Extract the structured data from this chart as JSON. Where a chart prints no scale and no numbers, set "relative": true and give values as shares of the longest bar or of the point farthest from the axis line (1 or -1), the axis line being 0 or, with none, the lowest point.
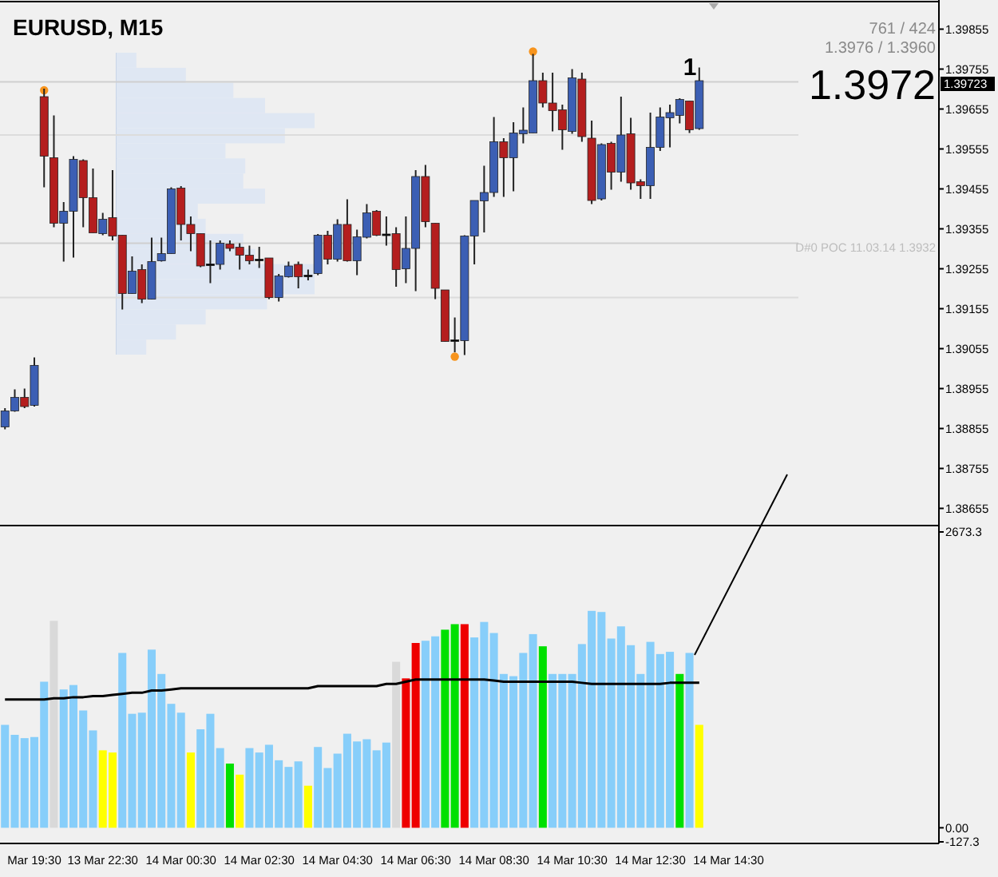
{
  "chart_data": [
    {
      "type": "candlestick",
      "title": "EURUSD, M15",
      "tick_labels": "y",
      "categories": [
        null,
        null,
        null,
        null,
        null,
        null,
        null,
        null,
        null,
        null,
        null,
        null,
        null,
        null,
        null,
        null,
        null,
        null,
        null,
        null,
        null,
        null,
        null,
        null,
        null,
        null,
        null,
        null,
        null,
        null,
        null,
        null,
        null,
        null,
        null,
        null,
        null,
        null,
        null,
        null,
        null,
        null,
        null,
        null,
        null,
        null,
        null,
        null,
        null,
        null,
        null,
        null,
        null,
        null,
        null,
        null,
        null,
        null,
        null,
        null,
        null,
        null,
        null,
        null,
        null,
        null,
        null,
        null,
        null,
        null,
        null,
        null,
        null,
        null,
        null,
        null,
        null,
        null,
        null,
        null,
        null,
        null,
        null,
        null,
        null,
        null,
        null,
        null,
        null,
        null,
        null,
        null,
        null,
        null,
        null,
        null
      ],
      "ohlc": [
        [
          1.38859,
          1.38906,
          1.38853,
          1.38899
        ],
        [
          1.38899,
          1.38953,
          1.38897,
          1.38933
        ],
        [
          1.38933,
          1.38955,
          1.38906,
          1.3891
        ],
        [
          1.38913,
          1.39033,
          1.3891,
          1.39013
        ],
        [
          1.39686,
          1.39706,
          1.39459,
          1.39537
        ],
        [
          1.39533,
          1.39639,
          1.39359,
          1.39369
        ],
        [
          1.39369,
          1.39422,
          1.39273,
          1.39399
        ],
        [
          1.39399,
          1.39537,
          1.39283,
          1.39529
        ],
        [
          1.39526,
          1.39529,
          1.39359,
          1.39433
        ],
        [
          1.39433,
          1.39506,
          1.39345,
          1.39345
        ],
        [
          1.39343,
          1.39395,
          1.39339,
          1.39379
        ],
        [
          1.39383,
          1.39502,
          1.39326,
          1.39337
        ],
        [
          1.39339,
          1.39339,
          1.39153,
          1.39193
        ],
        [
          1.39193,
          1.39286,
          1.39193,
          1.39249
        ],
        [
          1.39253,
          1.39266,
          1.39169,
          1.39179
        ],
        [
          1.39179,
          1.39333,
          1.39179,
          1.39273
        ],
        [
          1.39275,
          1.39333,
          1.39273,
          1.39293
        ],
        [
          1.39293,
          1.39459,
          1.39293,
          1.39455
        ],
        [
          1.39457,
          1.39462,
          1.39326,
          1.39366
        ],
        [
          1.39366,
          1.39386,
          1.39299,
          1.39343
        ],
        [
          1.39343,
          1.39343,
          1.39259,
          1.39262
        ],
        [
          1.39267,
          1.39326,
          1.39219,
          1.39267
        ],
        [
          1.39266,
          1.39326,
          1.39253,
          1.39319
        ],
        [
          1.39317,
          1.39326,
          1.39299,
          1.39306
        ],
        [
          1.39309,
          1.39319,
          1.39253,
          1.39289
        ],
        [
          1.39289,
          1.39313,
          1.39266,
          1.39275
        ],
        [
          1.39279,
          1.3931,
          1.39257,
          1.39279
        ],
        [
          1.39282,
          1.39282,
          1.39179,
          1.39183
        ],
        [
          1.39183,
          1.39242,
          1.39173,
          1.39237
        ],
        [
          1.39235,
          1.39273,
          1.39233,
          1.39262
        ],
        [
          1.39266,
          1.39273,
          1.39206,
          1.39235
        ],
        [
          1.39239,
          1.39253,
          1.39226,
          1.39239
        ],
        [
          1.39243,
          1.39342,
          1.39239,
          1.39339
        ],
        [
          1.39339,
          1.3935,
          1.39266,
          1.39279
        ],
        [
          1.39279,
          1.39379,
          1.39273,
          1.39366
        ],
        [
          1.39366,
          1.39429,
          1.39273,
          1.39275
        ],
        [
          1.39275,
          1.39353,
          1.39239,
          1.39335
        ],
        [
          1.39334,
          1.39417,
          1.39331,
          1.39395
        ],
        [
          1.39399,
          1.39402,
          1.39337,
          1.39339
        ],
        [
          1.39342,
          1.39386,
          1.39313,
          1.39342
        ],
        [
          1.39343,
          1.39359,
          1.3921,
          1.39253
        ],
        [
          1.39255,
          1.39386,
          1.39219,
          1.39306
        ],
        [
          1.39306,
          1.39502,
          1.39199,
          1.39486
        ],
        [
          1.39486,
          1.39515,
          1.39359,
          1.39373
        ],
        [
          1.39369,
          1.39369,
          1.39179,
          1.39206
        ],
        [
          1.39202,
          1.39202,
          1.39073,
          1.39073
        ],
        [
          1.39077,
          1.39133,
          1.39046,
          1.39077
        ],
        [
          1.39075,
          1.39339,
          1.39039,
          1.39337
        ],
        [
          1.39337,
          1.39426,
          1.39266,
          1.39426
        ],
        [
          1.39425,
          1.39513,
          1.39346,
          1.39446
        ],
        [
          1.39446,
          1.39635,
          1.39435,
          1.39573
        ],
        [
          1.39573,
          1.39582,
          1.39435,
          1.39533
        ],
        [
          1.39533,
          1.39622,
          1.39449,
          1.39595
        ],
        [
          1.39593,
          1.39659,
          1.39569,
          1.39602
        ],
        [
          1.39595,
          1.39793,
          1.39595,
          1.39726
        ],
        [
          1.39726,
          1.39746,
          1.39659,
          1.3967
        ],
        [
          1.3967,
          1.39746,
          1.39599,
          1.39651
        ],
        [
          1.39653,
          1.39666,
          1.39553,
          1.39603
        ],
        [
          1.39599,
          1.39755,
          1.39593,
          1.39733
        ],
        [
          1.3973,
          1.39746,
          1.39573,
          1.39586
        ],
        [
          1.39582,
          1.39626,
          1.39417,
          1.39426
        ],
        [
          1.3943,
          1.39569,
          1.39426,
          1.39566
        ],
        [
          1.39569,
          1.39573,
          1.39453,
          1.39497
        ],
        [
          1.39497,
          1.39686,
          1.39473,
          1.3959
        ],
        [
          1.39593,
          1.39633,
          1.39453,
          1.3947
        ],
        [
          1.39473,
          1.39479,
          1.3943,
          1.39463
        ],
        [
          1.39463,
          1.39646,
          1.3943,
          1.39559
        ],
        [
          1.39559,
          1.39659,
          1.3955,
          1.39635
        ],
        [
          1.39633,
          1.39666,
          1.39559,
          1.39646
        ],
        [
          1.39639,
          1.39682,
          1.39619,
          1.39679
        ],
        [
          1.39675,
          1.39675,
          1.39595,
          1.39603
        ],
        [
          1.39606,
          1.39759,
          1.39603,
          1.39726
        ],
        null,
        null,
        null,
        null,
        null,
        null,
        null,
        null,
        null,
        null,
        null,
        null,
        null,
        null,
        null,
        null,
        null,
        null,
        null,
        null,
        null,
        null,
        null,
        null
      ],
      "colors": [
        "#3c5fb4",
        "#3c5fb4",
        "#b41e1e",
        "#3c5fb4",
        "#b41e1e",
        "#b41e1e",
        "#3c5fb4",
        "#3c5fb4",
        "#b41e1e",
        "#b41e1e",
        "#3c5fb4",
        "#b41e1e",
        "#b41e1e",
        "#3c5fb4",
        "#b41e1e",
        "#3c5fb4",
        "#3c5fb4",
        "#3c5fb4",
        "#b41e1e",
        "#b41e1e",
        "#b41e1e",
        "#000000",
        "#3c5fb4",
        "#b41e1e",
        "#b41e1e",
        "#b41e1e",
        "#000000",
        "#b41e1e",
        "#3c5fb4",
        "#3c5fb4",
        "#b41e1e",
        "#000000",
        "#3c5fb4",
        "#b41e1e",
        "#3c5fb4",
        "#b41e1e",
        "#3c5fb4",
        "#3c5fb4",
        "#b41e1e",
        "#000000",
        "#b41e1e",
        "#3c5fb4",
        "#3c5fb4",
        "#b41e1e",
        "#b41e1e",
        "#b41e1e",
        "#000000",
        "#3c5fb4",
        "#3c5fb4",
        "#3c5fb4",
        "#3c5fb4",
        "#b41e1e",
        "#3c5fb4",
        "#3c5fb4",
        "#3c5fb4",
        "#b41e1e",
        "#b41e1e",
        "#b41e1e",
        "#3c5fb4",
        "#b41e1e",
        "#b41e1e",
        "#3c5fb4",
        "#b41e1e",
        "#3c5fb4",
        "#b41e1e",
        "#b41e1e",
        "#3c5fb4",
        "#3c5fb4",
        "#3c5fb4",
        "#3c5fb4",
        "#b41e1e",
        "#3c5fb4",
        null,
        null,
        null,
        null,
        null,
        null,
        null,
        null,
        null,
        null,
        null,
        null,
        null,
        null,
        null,
        null,
        null,
        null,
        null,
        null,
        null,
        null,
        null,
        null
      ],
      "series": [
        {
          "type": "scatter",
          "color": "#f7941d",
          "marker": "circle",
          "values": [
            null,
            null,
            null,
            null,
            1.39702,
            null,
            null,
            null,
            null,
            null,
            null,
            null,
            null,
            null,
            null,
            null,
            null,
            null,
            null,
            null,
            null,
            null,
            null,
            null,
            null,
            null,
            null,
            null,
            null,
            null,
            null,
            null,
            null,
            null,
            null,
            null,
            null,
            null,
            null,
            null,
            null,
            null,
            null,
            null,
            null,
            null,
            1.39035,
            null,
            null,
            null,
            null,
            null,
            null,
            null,
            1.39799,
            null,
            null,
            null,
            null,
            null,
            null,
            null,
            null,
            null,
            null,
            null,
            null,
            null,
            null,
            null,
            null,
            null,
            null,
            null,
            null,
            null,
            null,
            null,
            null,
            null,
            null,
            null,
            null,
            null,
            null,
            null,
            null,
            null,
            null,
            null,
            null,
            null,
            null,
            null,
            null,
            null
          ]
        }
      ],
      "ylim": [
        1.3862,
        1.3992
      ],
      "yticks": [
        1.38655,
        1.38755,
        1.38855,
        1.38955,
        1.39055,
        1.39155,
        1.39255,
        1.39355,
        1.39455,
        1.39555,
        1.39655,
        1.39755,
        1.39855
      ],
      "ref_lines": [
        {
          "axis": "y",
          "value": 1.39723,
          "color": "#cfcfcf"
        },
        {
          "axis": "y",
          "value": 1.3959,
          "color": "#dcdcdc"
        },
        {
          "axis": "y",
          "value": 1.39319,
          "label": "D#0 POC 11.03.14 1.3932",
          "color": "#cfcfcf"
        },
        {
          "axis": "y",
          "value": 1.39183,
          "color": "#dcdcdc"
        }
      ],
      "annotations": [
        "761 / 424",
        "1.3976 / 1.3960",
        "1.3972",
        "1",
        "1.39723"
      ]
    },
    {
      "type": "bar",
      "orientation": "horizontal",
      "relative": true,
      "color": "#dfe7f3",
      "categories": [
        null,
        null,
        null,
        null,
        null,
        null,
        null,
        null,
        null,
        null,
        null,
        null,
        null,
        null,
        null,
        null,
        null,
        null,
        null,
        null
      ],
      "values": [
        0.1,
        0.35,
        0.59,
        0.75,
        1,
        0.85,
        0.55,
        0.65,
        0.64,
        0.75,
        0.41,
        0.45,
        0.64,
        0.7,
        1,
        1,
        0.76,
        0.45,
        0.3,
        0.15
      ]
    },
    {
      "type": "bar",
      "categories": [
        null,
        null,
        null,
        "Mar 19:30",
        null,
        null,
        null,
        null,
        null,
        null,
        "13 Mar 22:30",
        null,
        null,
        null,
        null,
        null,
        null,
        null,
        "14 Mar 00:30",
        null,
        null,
        null,
        null,
        null,
        null,
        null,
        "14 Mar 02:30",
        null,
        null,
        null,
        null,
        null,
        null,
        null,
        "14 Mar 04:30",
        null,
        null,
        null,
        null,
        null,
        null,
        null,
        "14 Mar 06:30",
        null,
        null,
        null,
        null,
        null,
        null,
        null,
        "14 Mar 08:30",
        null,
        null,
        null,
        null,
        null,
        null,
        null,
        "14 Mar 10:30",
        null,
        null,
        null,
        null,
        null,
        null,
        null,
        "14 Mar 12:30",
        null,
        null,
        null,
        null,
        null,
        null,
        null,
        "14 Mar 14:30",
        null,
        null,
        null,
        null,
        null,
        null,
        null,
        null,
        null,
        null,
        null,
        null,
        null,
        null,
        null,
        null,
        null,
        null,
        null,
        null,
        null
      ],
      "series": [
        {
          "type": "bar",
          "values": [
            930,
            840,
            810,
            820,
            1320,
            1870,
            1250,
            1290,
            1060,
            880,
            700,
            680,
            1580,
            1030,
            1040,
            1610,
            1390,
            1120,
            1040,
            680,
            890,
            1030,
            720,
            580,
            480,
            720,
            680,
            750,
            610,
            550,
            600,
            380,
            730,
            540,
            670,
            850,
            780,
            800,
            700,
            770,
            1500,
            1350,
            1670,
            1690,
            1730,
            1790,
            1840,
            1840,
            1720,
            1860,
            1760,
            1390,
            1370,
            1580,
            1750,
            1640,
            1390,
            1390,
            1390,
            1660,
            1960,
            1950,
            1710,
            1820,
            1650,
            1390,
            1680,
            1570,
            1590,
            1390,
            1580,
            930,
            null,
            null,
            null,
            null,
            null,
            null,
            null,
            null,
            null,
            null,
            null,
            null,
            null,
            null,
            null,
            null,
            null,
            null,
            null,
            null,
            null,
            null,
            null,
            null
          ],
          "colors": [
            "#87cefa",
            "#87cefa",
            "#87cefa",
            "#87cefa",
            "#87cefa",
            "#d9d9d9",
            "#87cefa",
            "#87cefa",
            "#87cefa",
            "#87cefa",
            "#ffff00",
            "#ffff00",
            "#87cefa",
            "#87cefa",
            "#87cefa",
            "#87cefa",
            "#87cefa",
            "#87cefa",
            "#87cefa",
            "#ffff00",
            "#87cefa",
            "#87cefa",
            "#87cefa",
            "#00e000",
            "#ffff00",
            "#87cefa",
            "#87cefa",
            "#87cefa",
            "#87cefa",
            "#87cefa",
            "#87cefa",
            "#ffff00",
            "#87cefa",
            "#87cefa",
            "#87cefa",
            "#87cefa",
            "#87cefa",
            "#87cefa",
            "#87cefa",
            "#87cefa",
            "#d9d9d9",
            "#ee0000",
            "#ee0000",
            "#87cefa",
            "#87cefa",
            "#00e000",
            "#00e000",
            "#ee0000",
            "#87cefa",
            "#87cefa",
            "#87cefa",
            "#87cefa",
            "#87cefa",
            "#87cefa",
            "#87cefa",
            "#00e000",
            "#87cefa",
            "#87cefa",
            "#87cefa",
            "#87cefa",
            "#87cefa",
            "#87cefa",
            "#87cefa",
            "#87cefa",
            "#87cefa",
            "#87cefa",
            "#87cefa",
            "#87cefa",
            "#87cefa",
            "#00e000",
            "#87cefa",
            "#ffff00",
            null,
            null,
            null,
            null,
            null,
            null,
            null,
            null,
            null,
            null,
            null,
            null,
            null,
            null,
            null,
            null,
            null,
            null,
            null,
            null,
            null,
            null,
            null,
            null
          ]
        },
        {
          "type": "line",
          "color": "#000000",
          "values": [
            1160,
            1160,
            1160,
            1160,
            1160,
            1170,
            1170,
            1180,
            1180,
            1190,
            1190,
            1200,
            1210,
            1220,
            1220,
            1240,
            1240,
            1250,
            1260,
            1260,
            1260,
            1260,
            1260,
            1260,
            1260,
            1260,
            1260,
            1260,
            1260,
            1260,
            1260,
            1260,
            1280,
            1280,
            1280,
            1280,
            1280,
            1280,
            1280,
            1300,
            1300,
            1320,
            1340,
            1340,
            1340,
            1340,
            1340,
            1340,
            1340,
            1340,
            1330,
            1320,
            1320,
            1320,
            1320,
            1320,
            1320,
            1320,
            1320,
            1310,
            1300,
            1300,
            1300,
            1300,
            1300,
            1300,
            1300,
            1300,
            1310,
            1310,
            1310,
            1310,
            null,
            null,
            null,
            null,
            null,
            null,
            null,
            null,
            null,
            null,
            null,
            null,
            null,
            null,
            null,
            null,
            null,
            null,
            null,
            null,
            null,
            null,
            null,
            null
          ]
        }
      ],
      "ylim": [
        -127.3,
        2673.3
      ],
      "yticks": [
        2673.3,
        {
          "value": 0,
          "label": "0.00"
        },
        -127.3
      ]
    }
  ]
}
